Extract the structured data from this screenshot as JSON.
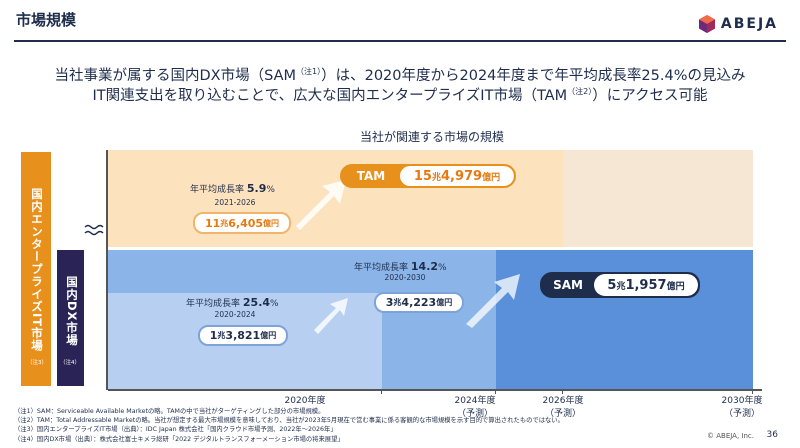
{
  "header": {
    "title": "市場規模",
    "logo_text": "ABEJA"
  },
  "lead": {
    "line1_a": "当社事業が属する国内DX市場（SAM",
    "line1_note": "（注1）",
    "line1_b": "）は、2020年度から2024年度まで年平均成長率25.4%の見込み",
    "line2_a": "IT関連支出を取り込むことで、広大な国内エンタープライズIT市場（TAM",
    "line2_note": "（注2）",
    "line2_b": "）にアクセス可能"
  },
  "chart_title": "当社が関連する市場の規模",
  "side": {
    "ext_label": "国内エンタープライズIT市場",
    "ext_note": "（注3）",
    "dx_label": "国内DX市場",
    "dx_note": "（注4）"
  },
  "axis": {
    "t2020": "2020年度",
    "t2024": "2024年度",
    "t2024b": "（予測）",
    "t2026": "2026年度",
    "t2026b": "（予測）",
    "t2030": "2030年度",
    "t2030b": "（予測）"
  },
  "tam": {
    "cagr_label": "年平均成長率",
    "cagr_value": "5.9",
    "cagr_unit": "%",
    "period": "2021-2026",
    "start_a": "11",
    "start_b": "兆",
    "start_c": "6,405",
    "start_d": "億円",
    "tag": "TAM",
    "end_a": "15",
    "end_b": "兆",
    "end_c": "4,979",
    "end_d": "億円"
  },
  "sam": {
    "cagr1_label": "年平均成長率",
    "cagr1_value": "25.4",
    "cagr1_unit": "%",
    "period1": "2020-2024",
    "start_a": "1",
    "start_b": "兆",
    "start_c": "3,821",
    "start_d": "億円",
    "cagr2_label": "年平均成長率",
    "cagr2_value": "14.2",
    "cagr2_unit": "%",
    "period2": "2020-2030",
    "mid_a": "3",
    "mid_b": "兆",
    "mid_c": "4,223",
    "mid_d": "億円",
    "tag": "SAM",
    "end_a": "5",
    "end_b": "兆",
    "end_c": "1,957",
    "end_d": "億円"
  },
  "footnotes": [
    "（注1）SAM：Serviceable Available Marketの略。TAMの中で当社がターゲティングした部分の市場規模。",
    "（注2）TAM：Total Addressable Marketの略。当社が想定する最大市場規模を意味しており、当社が2023年5月現在で営む事業に係る客観的な市場規模を示す目的で算出されたものではない。",
    "（注3）国内エンタープライズIT市場（出典）：IDC Japan 株式会社「国内クラウド市場予測、2022年～2026年」",
    "（注4）国内DX市場（出典）：株式会社富士キメラ総研「2022 デジタルトランスフォーメーション市場の将来展望」"
  ],
  "copyright": "© ABEJA, Inc.",
  "page_number": "36",
  "colors": {
    "navy": "#1f2d4d",
    "orange": "#e8901c",
    "blue": "#5a8fd9"
  }
}
